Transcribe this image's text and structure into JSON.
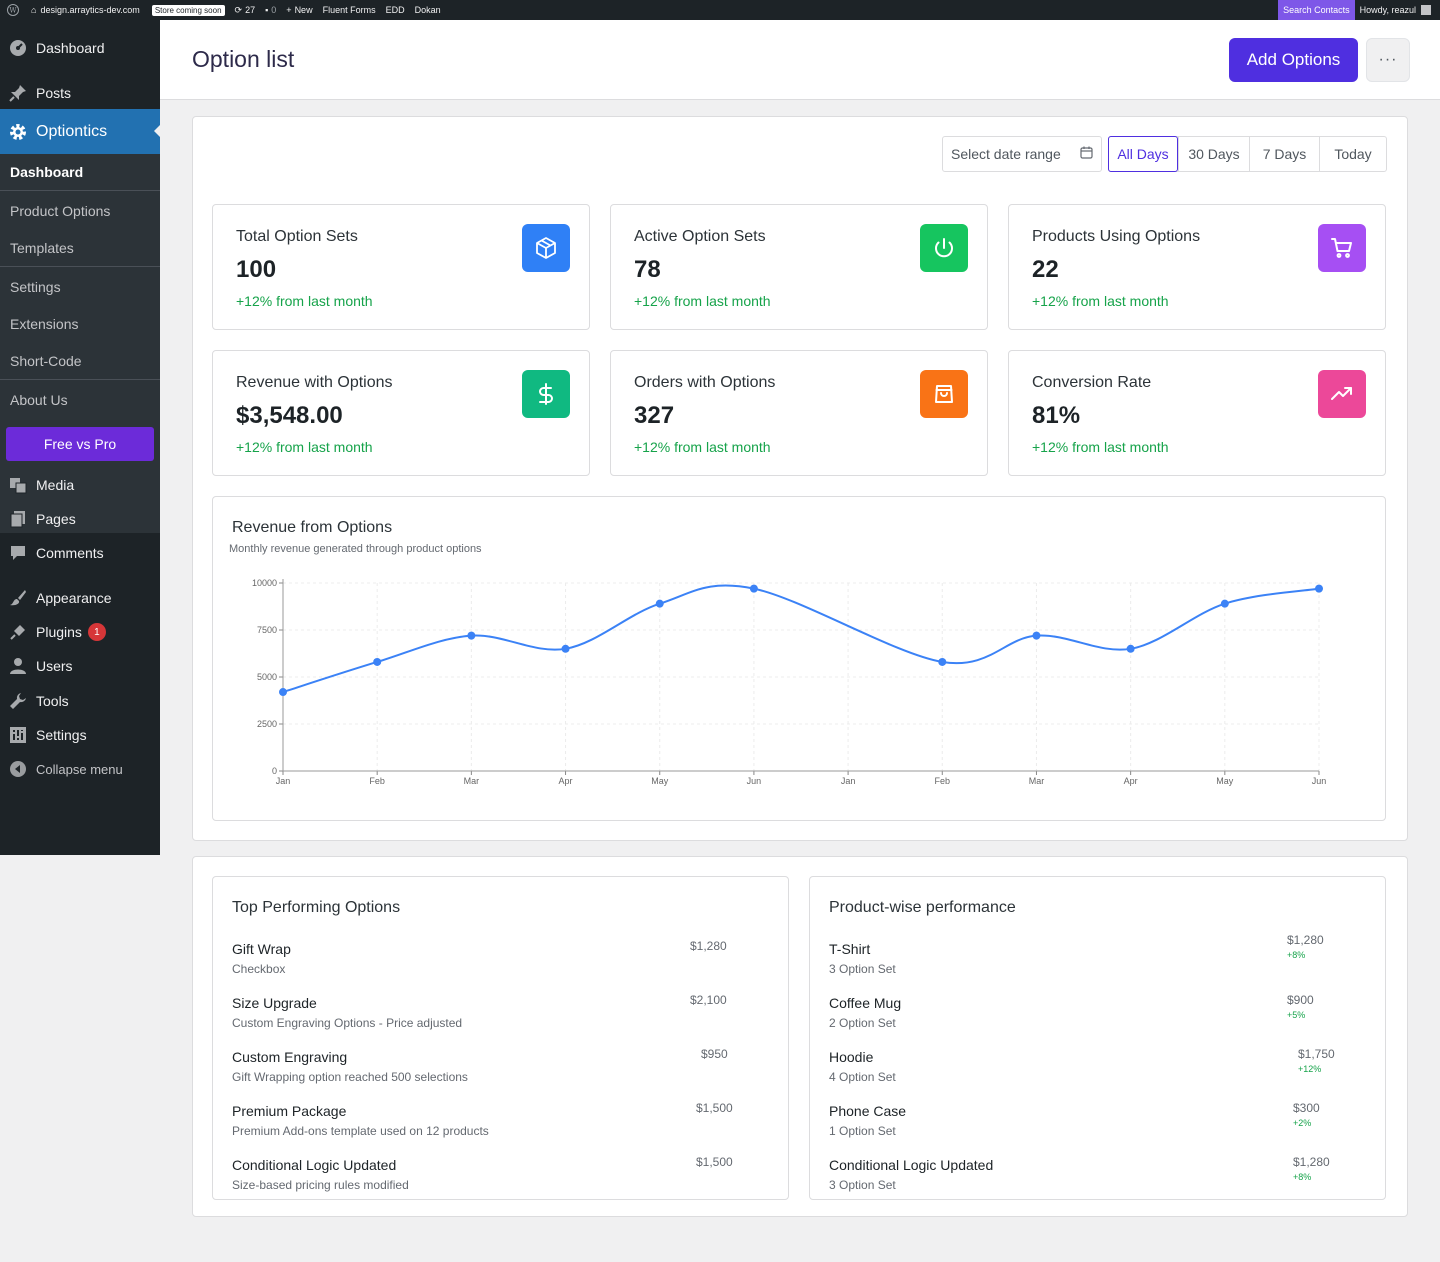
{
  "adminbar": {
    "site": "design.arraytics-dev.com",
    "store_badge": "Store coming soon",
    "updates": "27",
    "comments": "0",
    "new": "New",
    "links": [
      "Fluent Forms",
      "EDD",
      "Dokan"
    ],
    "search_contacts": "Search Contacts",
    "howdy": "Howdy, reazul"
  },
  "sidebar": {
    "dashboard": "Dashboard",
    "posts": "Posts",
    "optiontics": "Optiontics",
    "submenu": [
      "Dashboard",
      "Product Options",
      "Templates",
      "Settings",
      "Extensions",
      "Short-Code",
      "About Us"
    ],
    "pro_button": "Free vs Pro",
    "media": "Media",
    "pages": "Pages",
    "comments": "Comments",
    "appearance": "Appearance",
    "plugins": "Plugins",
    "plugins_badge": "1",
    "users": "Users",
    "tools": "Tools",
    "settings": "Settings",
    "collapse": "Collapse menu"
  },
  "header": {
    "title": "Option list",
    "add_button": "Add Options",
    "more": "···"
  },
  "filters": {
    "date_placeholder": "Select date range",
    "ranges": [
      "All Days",
      "30 Days",
      "7 Days",
      "Today"
    ],
    "active": "All Days"
  },
  "stats": [
    {
      "label": "Total Option Sets",
      "value": "100",
      "change": "+12% from last month",
      "icon": "cube-icon",
      "color": "#2f80f6"
    },
    {
      "label": "Active Option Sets",
      "value": "78",
      "change": "+12% from last month",
      "icon": "power-icon",
      "color": "#16c55f"
    },
    {
      "label": "Products Using Options",
      "value": "22",
      "change": "+12% from last month",
      "icon": "cart-icon",
      "color": "#a64ff3"
    },
    {
      "label": "Revenue with Options",
      "value": "$3,548.00",
      "change": "+12% from last month",
      "icon": "dollar-icon",
      "color": "#10b981"
    },
    {
      "label": "Orders with Options",
      "value": "327",
      "change": "+12% from last month",
      "icon": "shopping-bag-icon",
      "color": "#f97316"
    },
    {
      "label": "Conversion Rate",
      "value": "81%",
      "change": "+12% from last month",
      "icon": "trending-up-icon",
      "color": "#ec4899"
    }
  ],
  "chart_data": {
    "type": "line",
    "title": "Revenue from Options",
    "subtitle": "Monthly revenue generated through product options",
    "categories": [
      "Jan",
      "Feb",
      "Mar",
      "Apr",
      "May",
      "Jun",
      "Jan",
      "Feb",
      "Mar",
      "Apr",
      "May",
      "Jun"
    ],
    "series": [
      {
        "values": [
          4200,
          5800,
          7200,
          6500,
          8900,
          9700,
          null,
          5800,
          7200,
          6500,
          8900,
          9700
        ]
      }
    ],
    "y_ticks": [
      "0",
      "2500",
      "5000",
      "7500",
      "10000"
    ],
    "ylim": [
      0,
      10000
    ],
    "xlabel": "",
    "ylabel": "",
    "grid": true,
    "color": "#3b82f6"
  },
  "top_options": {
    "title": "Top Performing Options",
    "items": [
      {
        "name": "Gift Wrap",
        "desc": "Checkbox",
        "amount": "$1,280"
      },
      {
        "name": "Size Upgrade",
        "desc": "Custom Engraving Options - Price adjusted",
        "amount": "$2,100"
      },
      {
        "name": "Custom Engraving",
        "desc": "Gift Wrapping option reached 500 selections",
        "amount": "$950"
      },
      {
        "name": "Premium Package",
        "desc": "Premium Add-ons template used on 12 products",
        "amount": "$1,500"
      },
      {
        "name": "Conditional Logic Updated",
        "desc": "Size-based pricing rules modified",
        "amount": "$1,500"
      }
    ]
  },
  "product_perf": {
    "title": "Product-wise performance",
    "items": [
      {
        "name": "T-Shirt",
        "desc": "3 Option Set",
        "amount": "$1,280",
        "pct": "+8%"
      },
      {
        "name": "Coffee Mug",
        "desc": "2 Option Set",
        "amount": "$900",
        "pct": "+5%"
      },
      {
        "name": "Hoodie",
        "desc": "4 Option Set",
        "amount": "$1,750",
        "pct": "+12%"
      },
      {
        "name": "Phone Case",
        "desc": "1 Option Set",
        "amount": "$300",
        "pct": "+2%"
      },
      {
        "name": "Conditional Logic Updated",
        "desc": "3 Option Set",
        "amount": "$1,280",
        "pct": "+8%"
      }
    ]
  }
}
